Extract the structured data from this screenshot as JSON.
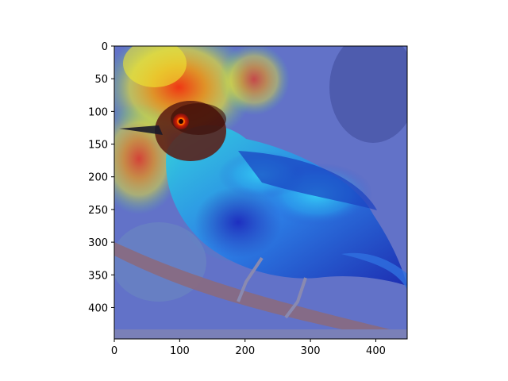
{
  "figure": {
    "image_description": "Grad-CAM heatmap overlay on photo of blue-green bird perched on branch",
    "colormap": "jet",
    "colors": {
      "axes": "#000000",
      "background": "#ffffff",
      "bottom_strip": "#7a80b8"
    }
  },
  "axes": {
    "x": {
      "ticks": [
        {
          "value": 0,
          "label": "0"
        },
        {
          "value": 100,
          "label": "100"
        },
        {
          "value": 200,
          "label": "200"
        },
        {
          "value": 300,
          "label": "300"
        },
        {
          "value": 400,
          "label": "400"
        }
      ],
      "range": [
        0,
        448
      ]
    },
    "y": {
      "ticks": [
        {
          "value": 0,
          "label": "0"
        },
        {
          "value": 50,
          "label": "50"
        },
        {
          "value": 100,
          "label": "100"
        },
        {
          "value": 150,
          "label": "150"
        },
        {
          "value": 200,
          "label": "200"
        },
        {
          "value": 250,
          "label": "250"
        },
        {
          "value": 300,
          "label": "300"
        },
        {
          "value": 350,
          "label": "350"
        },
        {
          "value": 400,
          "label": "400"
        }
      ],
      "range": [
        0,
        448
      ]
    }
  }
}
